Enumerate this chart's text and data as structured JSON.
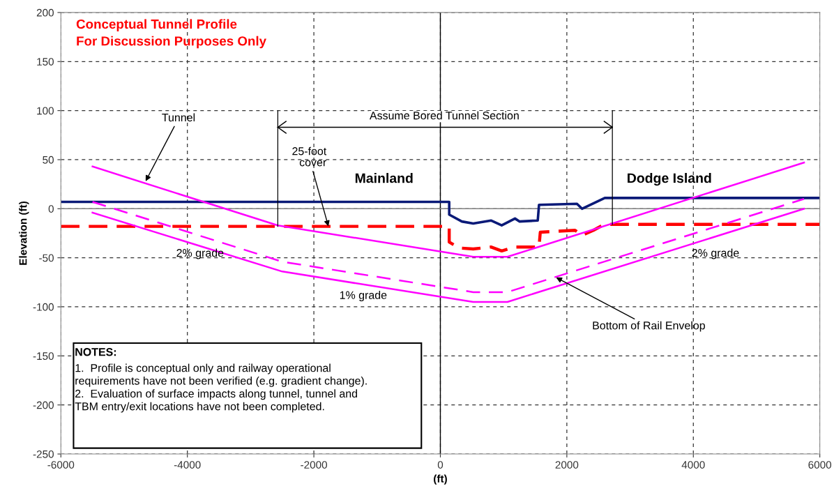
{
  "chart_data": {
    "type": "line",
    "title": "Conceptual Tunnel Profile\nFor Discussion Purposes Only",
    "xlabel": "(ft)",
    "ylabel": "Elevation (ft)",
    "series": [
      {
        "color": "#0a1a78",
        "line_style": "solid",
        "x": [
          -6000,
          140,
          140,
          340,
          520,
          800,
          970,
          1180,
          1250,
          1540,
          1560,
          2160,
          2240,
          2600,
          6000
        ],
        "values": [
          7,
          7,
          -6,
          -13,
          -15,
          -12,
          -17,
          -10,
          -13,
          -12,
          4,
          5,
          0,
          11,
          11
        ]
      },
      {
        "color": "#ff0000",
        "line_style": "dashed",
        "x": [
          -6000,
          140,
          140,
          300,
          520,
          800,
          970,
          1180,
          1560,
          1580,
          2130,
          2240,
          2420,
          2590,
          6000
        ],
        "values": [
          -18,
          -18,
          -34,
          -40,
          -41,
          -39,
          -43,
          -39,
          -39,
          -24,
          -22,
          -27,
          -22,
          -16,
          -16
        ]
      },
      {
        "color": "#ff00ff",
        "line_style": "solid",
        "x": [
          -5500,
          -2570,
          520,
          1060,
          5750
        ],
        "values": [
          43,
          -17,
          -49,
          -49,
          47
        ]
      },
      {
        "color": "#ff00ff",
        "line_style": "dashed",
        "x": [
          -5500,
          -2500,
          520,
          1060,
          5750
        ],
        "values": [
          7,
          -54,
          -85,
          -85,
          10
        ]
      },
      {
        "color": "#ff00ff",
        "line_style": "solid",
        "x": [
          -5500,
          -2500,
          520,
          1060,
          5750
        ],
        "values": [
          -4,
          -64,
          -95,
          -95,
          0
        ]
      },
      {
        "color": "#000000",
        "line_style": "solid",
        "x": [
          -2570,
          -2570
        ],
        "values": [
          100,
          -18
        ]
      },
      {
        "color": "#000000",
        "line_style": "solid",
        "x": [
          2720,
          2720
        ],
        "values": [
          100,
          -16
        ]
      },
      {
        "color": "#000000",
        "line_style": "solid",
        "x": [
          -2570,
          2720
        ],
        "values": [
          83,
          83
        ]
      }
    ],
    "ref_lines": [
      {
        "axis": "x",
        "value": 0,
        "color": "#000000"
      },
      {
        "axis": "y",
        "value": 0,
        "color": "#808080"
      }
    ],
    "annotations": [
      {
        "text": "Tunnel",
        "x": -4660,
        "y": 28
      },
      {
        "text": "25-foot\ncover",
        "x": -1770,
        "y": -18
      },
      "Mainland",
      "Dodge Island",
      "Assume Bored Tunnel Section",
      "2% grade",
      "1% grade",
      "2% grade",
      {
        "text": "Bottom of Rail Envelop",
        "x": 1830,
        "y": -70
      },
      "NOTES:",
      "1.  Profile is conceptual only and railway operational\nrequirements have not been verified (e.g. gradient change).\n2.  Evaluation of surface impacts along tunnel, tunnel and\nTBM entry/exit locations have not been completed."
    ],
    "xlim": [
      -6000,
      6000
    ],
    "ylim": [
      -250,
      200
    ],
    "xticks": [
      -6000,
      -4000,
      -2000,
      0,
      2000,
      4000,
      6000
    ],
    "yticks": [
      -250,
      -200,
      -150,
      -100,
      -50,
      0,
      50,
      100,
      150,
      200
    ],
    "grid": true,
    "legend": false,
    "marker": "none"
  }
}
